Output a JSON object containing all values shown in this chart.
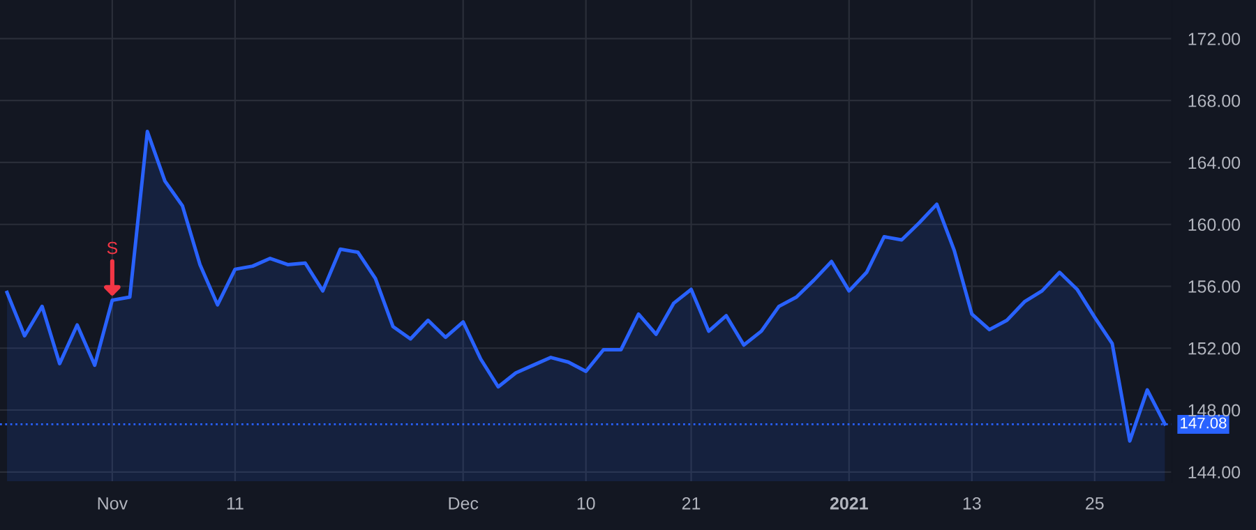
{
  "chart_data": {
    "type": "area",
    "categories": [
      null,
      null,
      null,
      null,
      null,
      null,
      "Nov",
      null,
      null,
      null,
      null,
      null,
      null,
      "11",
      null,
      null,
      null,
      null,
      null,
      null,
      null,
      null,
      null,
      null,
      null,
      null,
      "Dec",
      null,
      null,
      null,
      null,
      null,
      null,
      "10",
      null,
      null,
      null,
      null,
      null,
      "21",
      null,
      null,
      null,
      null,
      null,
      null,
      null,
      null,
      "2021",
      null,
      null,
      null,
      null,
      null,
      null,
      "13",
      null,
      null,
      null,
      null,
      null,
      null,
      "25",
      null,
      null,
      null,
      null
    ],
    "series": [
      {
        "color": "#2962ff",
        "values": [
          155.6,
          152.8,
          154.7,
          151.0,
          153.5,
          150.9,
          155.1,
          155.3,
          166.0,
          162.8,
          161.2,
          157.4,
          154.8,
          157.1,
          157.3,
          157.8,
          157.4,
          157.5,
          155.7,
          158.4,
          158.2,
          156.5,
          153.4,
          152.6,
          153.8,
          152.7,
          153.7,
          151.3,
          149.5,
          150.4,
          150.9,
          151.4,
          151.1,
          150.5,
          151.9,
          151.9,
          154.2,
          152.9,
          154.9,
          155.8,
          153.1,
          154.1,
          152.2,
          153.1,
          154.7,
          155.3,
          156.4,
          157.6,
          155.7,
          156.9,
          159.2,
          159.0,
          160.1,
          161.3,
          158.3,
          154.2,
          153.2,
          153.8,
          155.0,
          155.7,
          156.9,
          155.8,
          154.0,
          152.3,
          146.0,
          149.3,
          147.1
        ]
      }
    ],
    "ylim": [
      143.4,
      174.5
    ],
    "yticks": [
      {
        "value": 144,
        "label": "144.00"
      },
      {
        "value": 148,
        "label": "148.00"
      },
      {
        "value": 152,
        "label": "152.00"
      },
      {
        "value": 156,
        "label": "156.00"
      },
      {
        "value": 160,
        "label": "160.00"
      },
      {
        "value": 164,
        "label": "164.00"
      },
      {
        "value": 168,
        "label": "168.00"
      },
      {
        "value": 172,
        "label": "172.00"
      }
    ],
    "grid": true,
    "ref_lines": [
      {
        "axis": "y",
        "value": 147.08,
        "label": "147.08",
        "color": "#2962ff",
        "line_style": "dotted"
      }
    ],
    "annotations": [
      {
        "text": "S",
        "x": "Nov",
        "y": 155.1
      }
    ]
  }
}
